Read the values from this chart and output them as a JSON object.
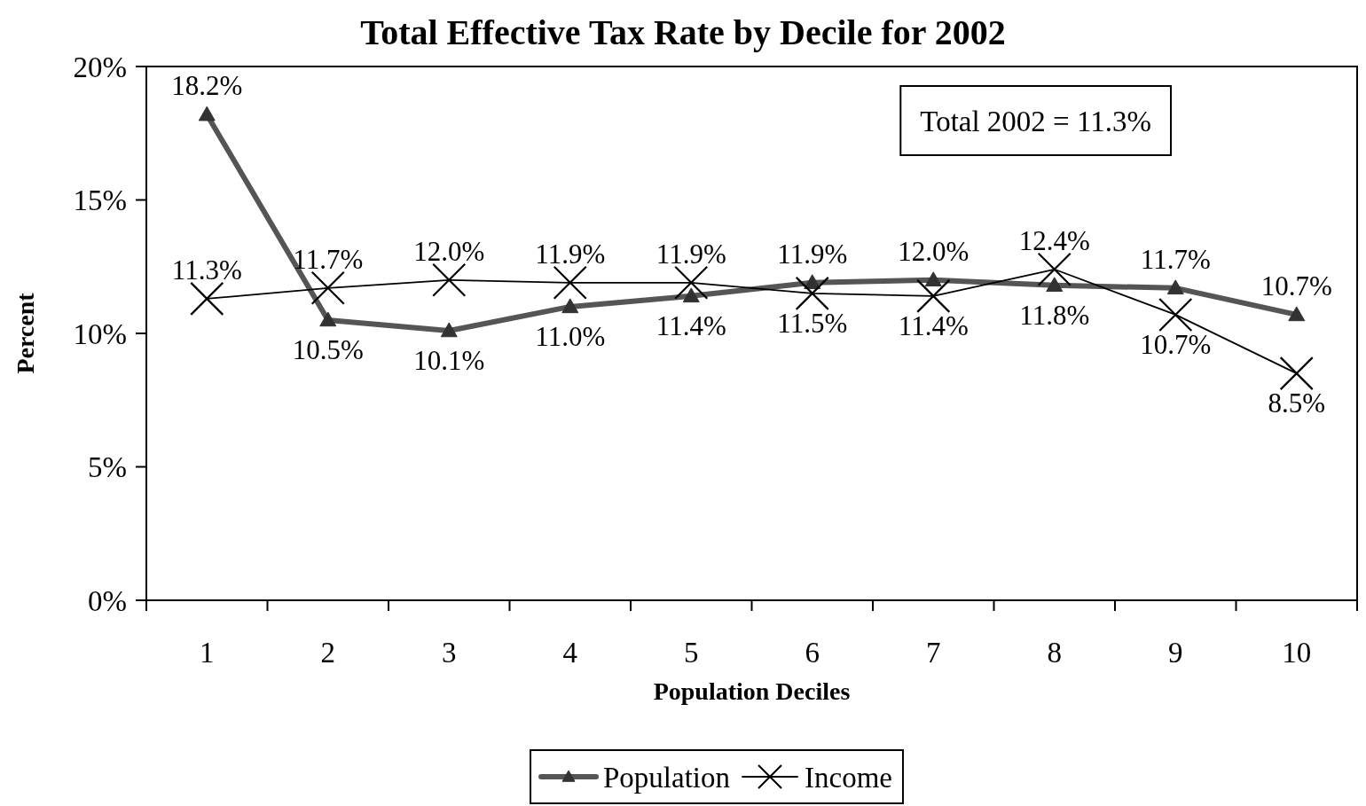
{
  "chart_data": {
    "type": "line",
    "title": "Total Effective Tax Rate by Decile for 2002",
    "xlabel": "Population Deciles",
    "ylabel": "Percent",
    "categories": [
      "1",
      "2",
      "3",
      "4",
      "5",
      "6",
      "7",
      "8",
      "9",
      "10"
    ],
    "series": [
      {
        "name": "Population",
        "color": "#555555",
        "marker": "triangle",
        "values": [
          18.2,
          10.5,
          10.1,
          11.0,
          11.4,
          11.9,
          12.0,
          11.8,
          11.7,
          10.7
        ],
        "value_labels": [
          "18.2%",
          "10.5%",
          "10.1%",
          "11.0%",
          "11.4%",
          "11.9%",
          "12.0%",
          "11.8%",
          "11.7%",
          "10.7%"
        ]
      },
      {
        "name": "Income",
        "color": "#000000",
        "marker": "cross",
        "values": [
          11.3,
          11.7,
          12.0,
          11.9,
          11.9,
          11.5,
          11.4,
          12.4,
          10.7,
          8.5
        ],
        "value_labels": [
          "11.3%",
          "11.7%",
          "12.0%",
          "11.9%",
          "11.9%",
          "11.5%",
          "11.4%",
          "12.4%",
          "10.7%",
          "8.5%"
        ]
      }
    ],
    "ylim": [
      0,
      20
    ],
    "yticks": [
      {
        "value": 0,
        "label": "0%"
      },
      {
        "value": 5,
        "label": "5%"
      },
      {
        "value": 10,
        "label": "10%"
      },
      {
        "value": 15,
        "label": "15%"
      },
      {
        "value": 20,
        "label": "20%"
      }
    ],
    "annotations": [
      "Total 2002 = 11.3%"
    ],
    "legend": "bottom"
  }
}
